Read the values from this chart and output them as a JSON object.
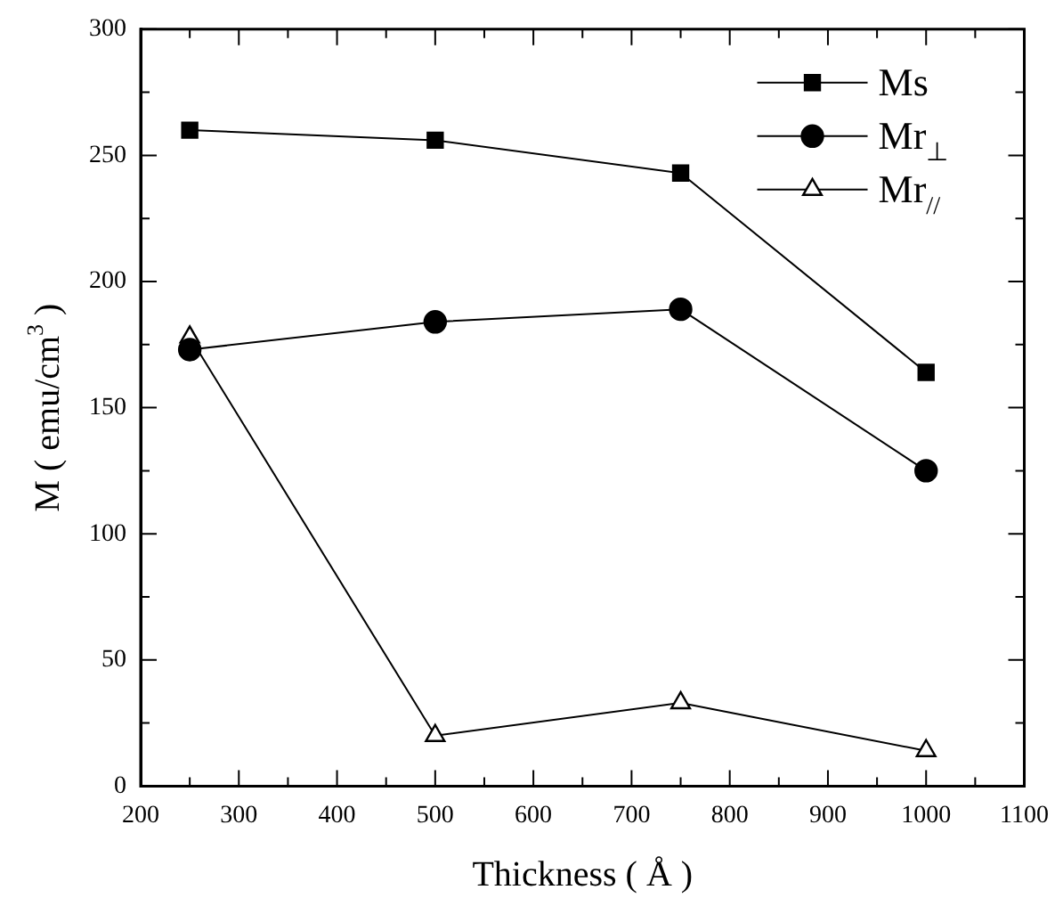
{
  "chart_data": {
    "type": "line",
    "xlabel": "Thickness ( Å )",
    "ylabel": "M ( emu/cm$^{3}$ )",
    "x": [
      250,
      500,
      750,
      1000
    ],
    "series": [
      {
        "name": "Ms",
        "color": "#000000",
        "marker": "square",
        "values": [
          260,
          256,
          243,
          164
        ]
      },
      {
        "name": "Mr$_{⊥}$",
        "color": "#000000",
        "marker": "circle",
        "values": [
          173,
          184,
          189,
          125
        ]
      },
      {
        "name": "Mr$_{//}$",
        "color": "#000000",
        "marker": "triangle",
        "values": [
          178,
          20,
          33,
          14
        ]
      }
    ],
    "xlim": [
      200,
      1100
    ],
    "xticks": [
      200,
      {
        "value": 250,
        "label": null
      },
      300,
      {
        "value": 350,
        "label": null
      },
      400,
      {
        "value": 450,
        "label": null
      },
      500,
      {
        "value": 550,
        "label": null
      },
      600,
      {
        "value": 650,
        "label": null
      },
      700,
      {
        "value": 750,
        "label": null
      },
      800,
      {
        "value": 850,
        "label": null
      },
      900,
      {
        "value": 950,
        "label": null
      },
      1000,
      {
        "value": 1050,
        "label": null
      },
      1100
    ],
    "ylim": [
      0,
      300
    ],
    "yticks": [
      0,
      {
        "value": 25,
        "label": null
      },
      50,
      {
        "value": 75,
        "label": null
      },
      100,
      {
        "value": 125,
        "label": null
      },
      150,
      {
        "value": 175,
        "label": null
      },
      200,
      {
        "value": 225,
        "label": null
      },
      250,
      {
        "value": 275,
        "label": null
      },
      300
    ],
    "grid": false,
    "legend": "top right",
    "line_style": "solid"
  }
}
